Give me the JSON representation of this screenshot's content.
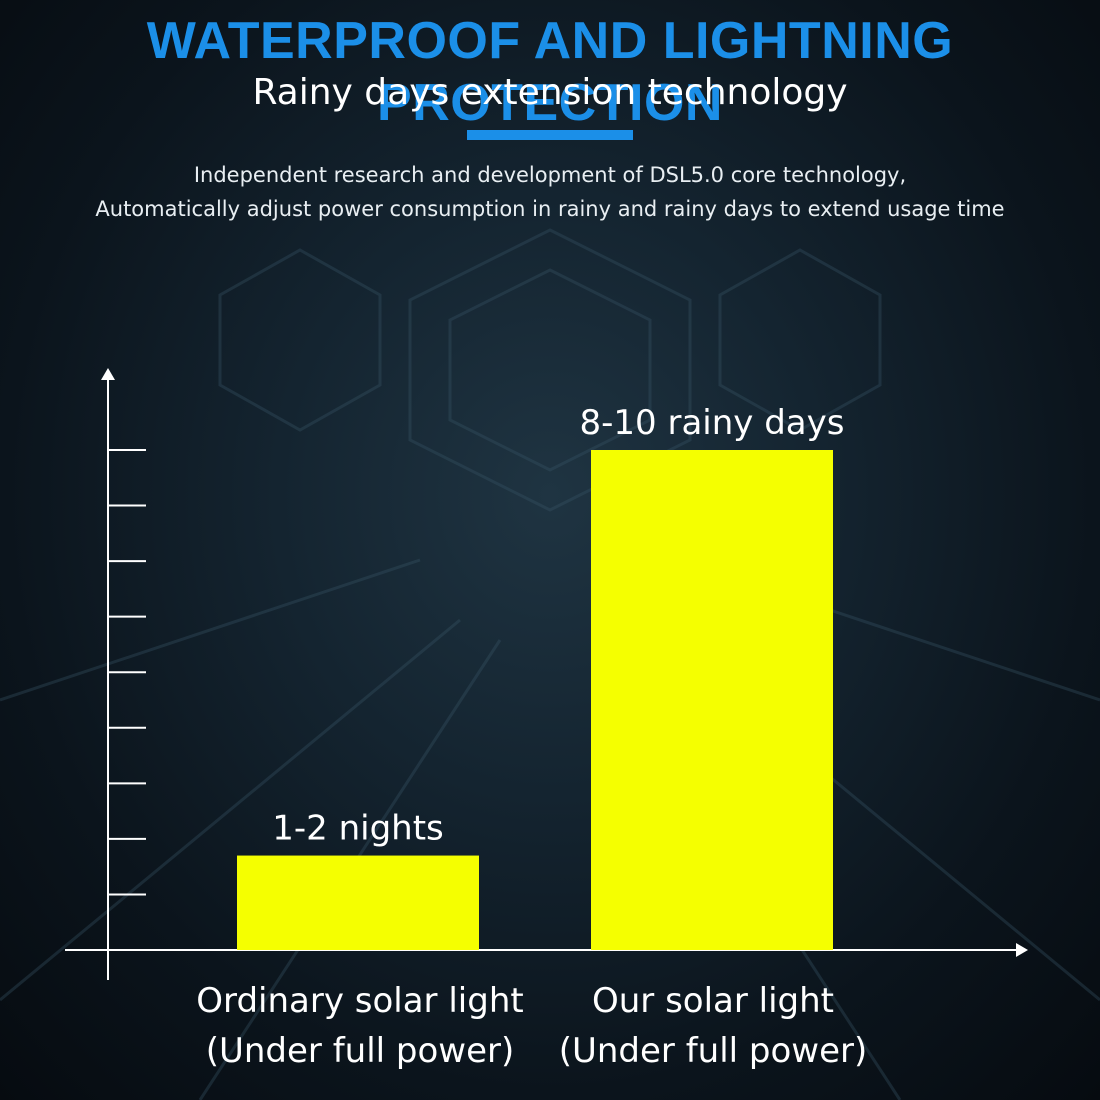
{
  "header": {
    "title": "WATERPROOF AND LIGHTNING PROTECTION",
    "subtitle": "Rainy days extension technology",
    "description_line1": "Independent research and development of DSL5.0 core technology,",
    "description_line2": "Automatically adjust power consumption in rainy and rainy days to extend usage time"
  },
  "colors": {
    "title": "#1b8fe8",
    "accent_bar": "#1b8fe8",
    "bar_fill": "#f5ff00",
    "axis": "#ffffff"
  },
  "chart_data": {
    "type": "bar",
    "title": "",
    "xlabel": "",
    "ylabel": "",
    "grid": false,
    "ylim": [
      0,
      9
    ],
    "y_ticks": [
      1,
      2,
      3,
      4,
      5,
      6,
      7,
      8,
      9
    ],
    "categories": [
      {
        "line1": "Ordinary solar light",
        "line2": "(Under full power)"
      },
      {
        "line1": "Our solar light",
        "line2": "(Under full power)"
      }
    ],
    "values": [
      1.7,
      9
    ],
    "data_labels": [
      "1-2 nights",
      "8-10 rainy days"
    ]
  }
}
